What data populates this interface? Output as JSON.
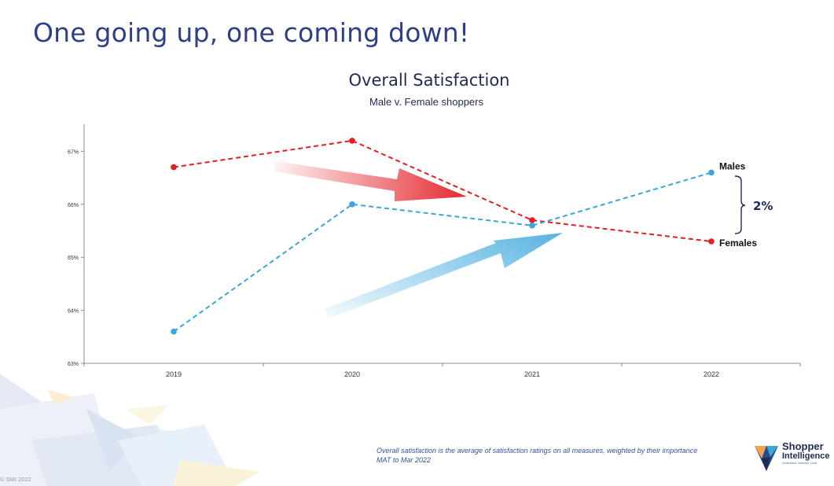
{
  "slide": {
    "title": "One going up, one coming down!",
    "footnote_line1": "Overall satisfaction is the average of satisfaction ratings on all measures, weighted by their importance",
    "footnote_line2": "MAT to Mar 2022",
    "copyright": "© SMI  2022"
  },
  "logo": {
    "name": "Shopper",
    "subname": "Intelligence",
    "tagline": "Understand. Influence. Lead."
  },
  "chart_data": {
    "type": "line",
    "title": "Overall Satisfaction",
    "subtitle": "Male v. Female shoppers",
    "categories": [
      "2019",
      "2020",
      "2021",
      "2022"
    ],
    "ylim": [
      63,
      67.5
    ],
    "yticks": [
      63,
      64,
      65,
      66,
      67
    ],
    "ytick_labels": [
      "63%",
      "64%",
      "65%",
      "66%",
      "67%"
    ],
    "series": [
      {
        "name": "Females",
        "color": "#e31e25",
        "values": [
          66.7,
          67.2,
          65.7,
          65.3
        ]
      },
      {
        "name": "Males",
        "color": "#3aa6dc",
        "values": [
          63.6,
          66.0,
          65.6,
          66.6
        ]
      }
    ],
    "annotation": {
      "label": "2%"
    }
  }
}
